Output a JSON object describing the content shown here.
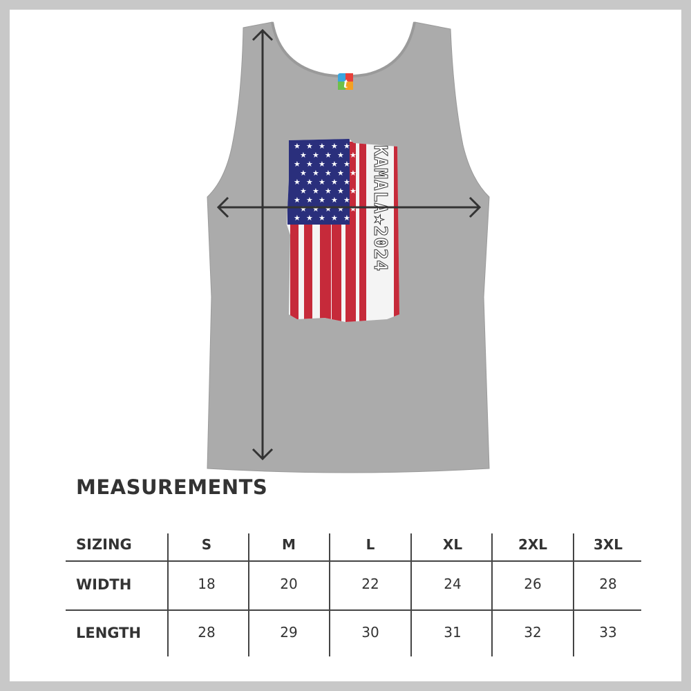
{
  "product": {
    "design_text": "KAMALA★2024",
    "brand_logo_letter": "t",
    "garment_color": "#a9a9a9",
    "flag_colors": {
      "blue": "#2a2f7c",
      "red": "#c62a3a",
      "white": "#f4f4f4"
    },
    "arrow_color": "#333333"
  },
  "measurements": {
    "title": "MEASUREMENTS",
    "header_label": "SIZING",
    "sizes": [
      "S",
      "M",
      "L",
      "XL",
      "2XL",
      "3XL"
    ],
    "rows": [
      {
        "label": "WIDTH",
        "values": [
          "18",
          "20",
          "22",
          "24",
          "26",
          "28"
        ]
      },
      {
        "label": "LENGTH",
        "values": [
          "28",
          "29",
          "30",
          "31",
          "32",
          "33"
        ]
      }
    ]
  }
}
